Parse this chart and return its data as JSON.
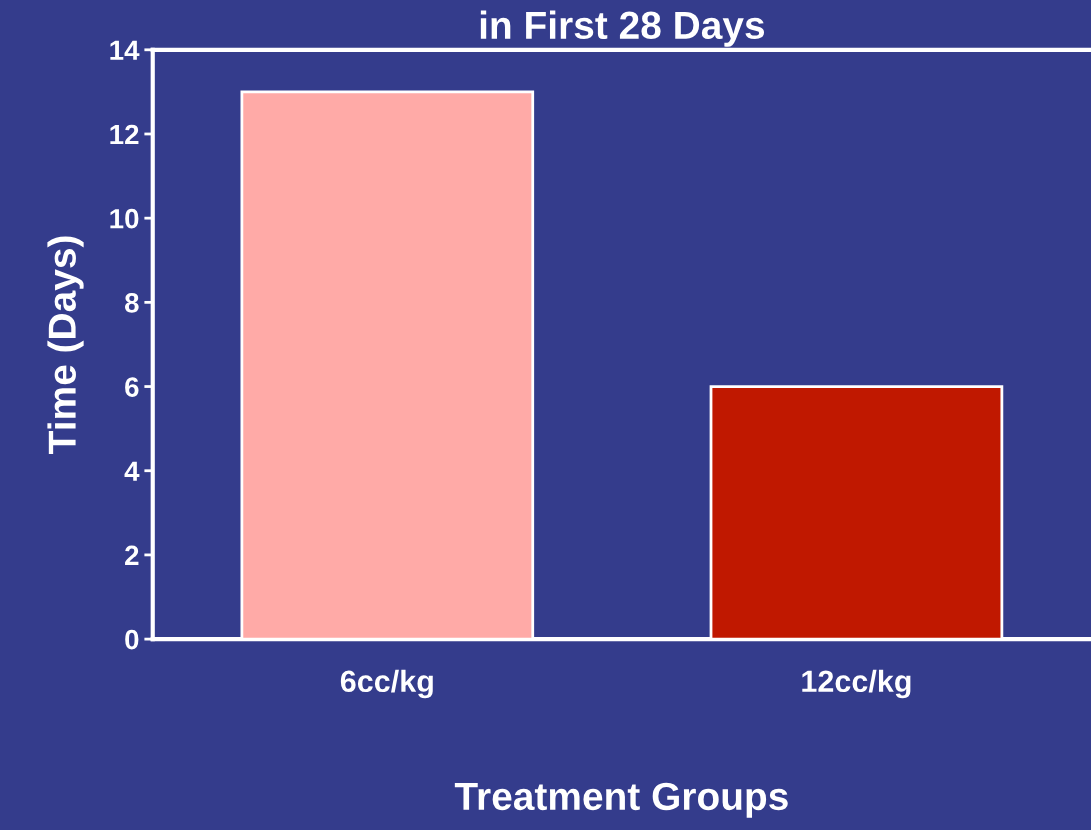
{
  "chart_data": {
    "type": "bar",
    "title": "in First 28 Days",
    "xlabel": "Treatment Groups",
    "ylabel": "Time (Days)",
    "categories": [
      "6cc/kg",
      "12cc/kg"
    ],
    "values": [
      13,
      6
    ],
    "colors": [
      "#ffaaa7",
      "#c01800"
    ],
    "ylim": [
      0,
      14
    ],
    "yticks": [
      0,
      2,
      4,
      6,
      8,
      10,
      12,
      14
    ],
    "grid": false,
    "legend": false
  }
}
